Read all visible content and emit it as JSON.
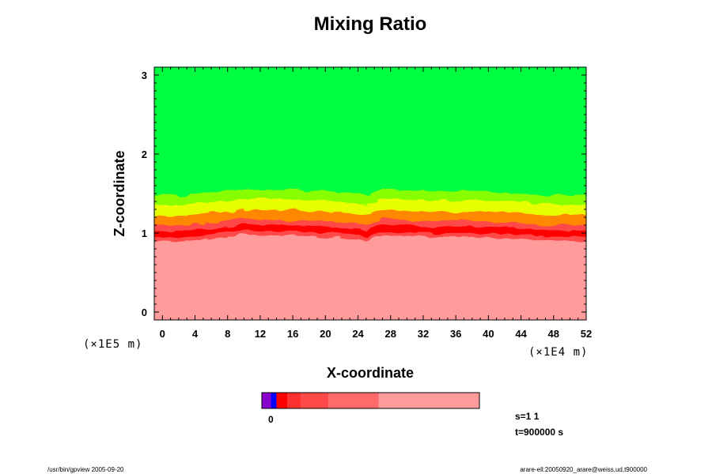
{
  "chart_data": {
    "type": "heatmap",
    "title": "Mixing Ratio",
    "xlabel": "X-coordinate",
    "ylabel": "Z-coordinate",
    "x_scale_label": "(×1E4 m)",
    "y_scale_label": "(×1E5 m)",
    "x_ticks": [
      0,
      4,
      8,
      12,
      16,
      20,
      24,
      28,
      32,
      36,
      40,
      44,
      48,
      52
    ],
    "y_ticks": [
      0,
      1,
      2,
      3
    ],
    "xlim": [
      -1,
      52
    ],
    "ylim": [
      -0.1,
      3.1
    ],
    "legend": {
      "position": "bottom",
      "label": "0"
    },
    "annotations": {
      "s": "s=1 1",
      "t": "t=900000 s"
    },
    "colors": {
      "background_layer": "#ff9b9b",
      "dark_red": "#ff0000",
      "mid_red": "#ff4848",
      "orange": "#ff8800",
      "yellow": "#e8ff00",
      "yellow_green": "#88ff00",
      "upper_layer": "#00ff40",
      "purple": "#8800cc",
      "blue": "#0000ff"
    },
    "colorbar": [
      {
        "color": "#8800cc",
        "weight": 1
      },
      {
        "color": "#0000ff",
        "weight": 0.6
      },
      {
        "color": "#ff0000",
        "weight": 1.2
      },
      {
        "color": "#ff3030",
        "weight": 1.5
      },
      {
        "color": "#ff4848",
        "weight": 3
      },
      {
        "color": "#ff6a6a",
        "weight": 5.5
      },
      {
        "color": "#ff9b9b",
        "weight": 11
      }
    ],
    "interface_z": [
      [
        -1,
        1.0
      ],
      [
        2,
        0.99
      ],
      [
        6,
        1.03
      ],
      [
        10,
        1.08
      ],
      [
        14,
        1.07
      ],
      [
        18,
        1.06
      ],
      [
        22,
        1.04
      ],
      [
        25,
        1.0
      ],
      [
        27,
        1.08
      ],
      [
        30,
        1.06
      ],
      [
        34,
        1.05
      ],
      [
        38,
        1.05
      ],
      [
        42,
        1.04
      ],
      [
        46,
        1.01
      ],
      [
        50,
        1.0
      ],
      [
        52,
        1.0
      ]
    ]
  },
  "footer": {
    "left": "/usr/bin/gpview 2005-09-20",
    "right": "arare-ell:20050920_arare@weiss,ud,t900000"
  }
}
